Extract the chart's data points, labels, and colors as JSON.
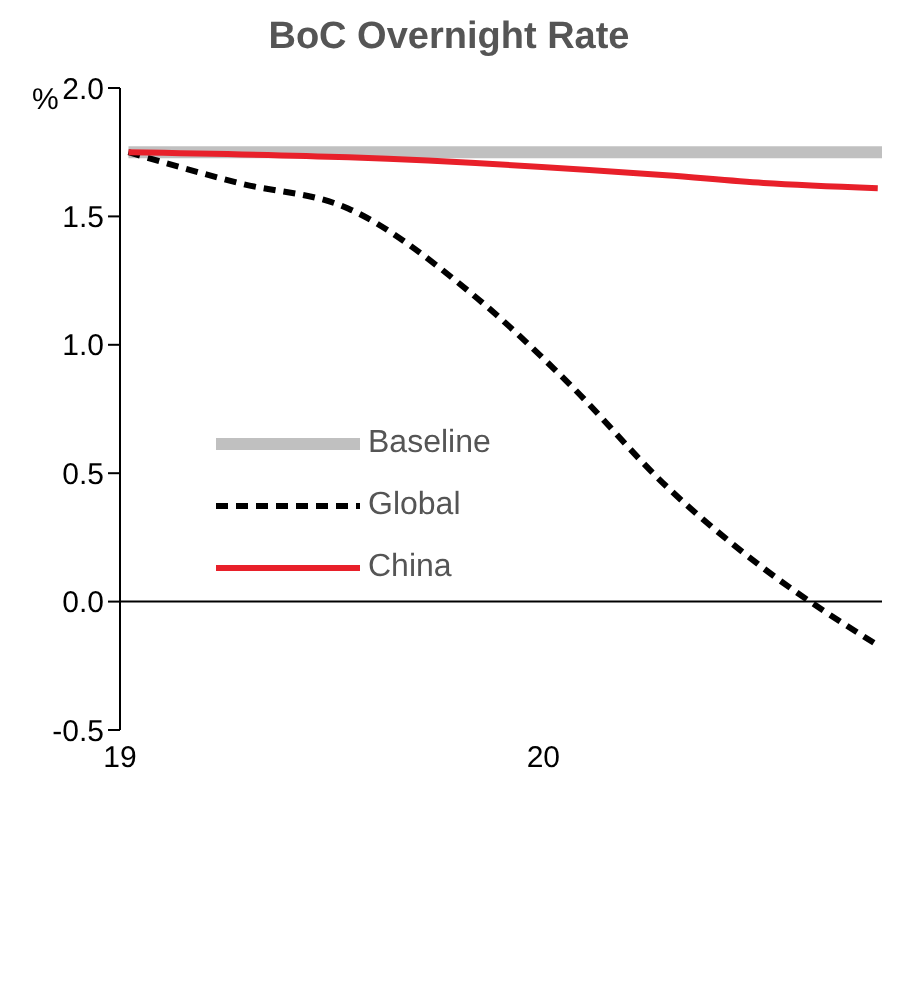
{
  "chart_data": {
    "type": "line",
    "title": "BoC Overnight Rate",
    "ylabel": "%",
    "xlim": [
      19,
      20.8
    ],
    "xticks": [
      19,
      20
    ],
    "ylim": [
      -0.5,
      2
    ],
    "yticks": [
      {
        "value": -0.5,
        "label": "-0.5"
      },
      {
        "value": 0,
        "label": "0.0"
      },
      {
        "value": 0.5,
        "label": "0.5"
      },
      {
        "value": 1,
        "label": "1.0"
      },
      {
        "value": 1.5,
        "label": "1.5"
      },
      {
        "value": 2,
        "label": "2.0"
      }
    ],
    "series": [
      {
        "name": "Baseline",
        "color": "#c0c0c0",
        "x": [
          19.02,
          20.8
        ],
        "values": [
          1.75,
          1.75
        ]
      },
      {
        "name": "Global",
        "color": "#000000",
        "line_style": "dashed",
        "x": [
          19.02,
          19.28,
          19.54,
          19.83,
          20.06,
          20.29,
          20.52,
          20.79
        ],
        "values": [
          1.75,
          1.63,
          1.53,
          1.2,
          0.85,
          0.45,
          0.13,
          -0.17
        ]
      },
      {
        "name": "China",
        "color": "#e8202a",
        "x": [
          19.02,
          19.54,
          20.29,
          20.52,
          20.79
        ],
        "values": [
          1.75,
          1.73,
          1.66,
          1.63,
          1.61
        ]
      }
    ],
    "ref_lines": [
      {
        "axis": "y",
        "value": 0,
        "color": "#000000"
      }
    ],
    "legend": "bottom left",
    "marker": "none",
    "line_style": "solid"
  }
}
